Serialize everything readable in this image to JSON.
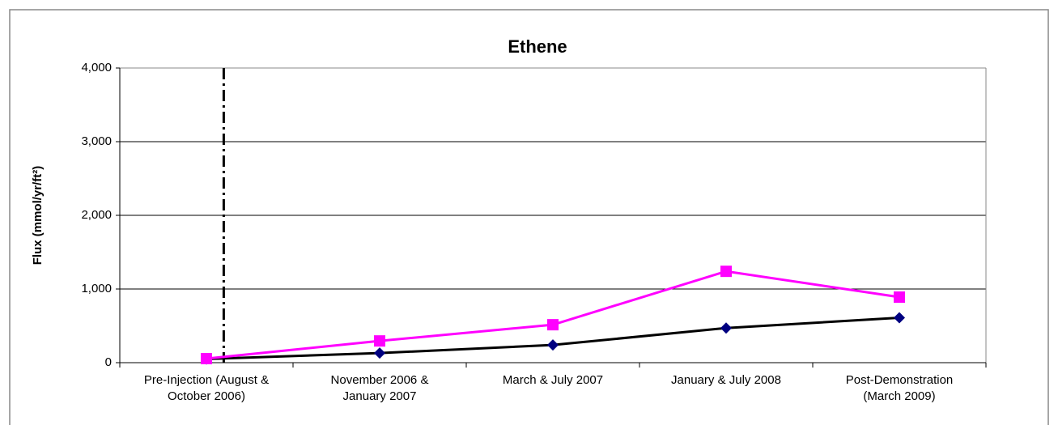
{
  "chart_data": {
    "type": "line",
    "title": "Ethene",
    "y_label": "Flux (mmol/yr/ft²)",
    "categories": [
      [
        "Pre-Injection (August &",
        "October 2006)"
      ],
      [
        "November 2006 &",
        "January 2007"
      ],
      [
        "March & July 2007"
      ],
      [
        "January & July 2008"
      ],
      [
        "Post-Demonstration",
        "(March 2009)"
      ]
    ],
    "series": [
      {
        "color": "#000080",
        "line_color": "#000000",
        "marker": "diamond",
        "values": [
          50,
          130,
          240,
          470,
          610
        ]
      },
      {
        "color": "#ff00ff",
        "line_color": "#ff00ff",
        "marker": "square",
        "values": [
          55,
          295,
          515,
          1240,
          890
        ]
      }
    ],
    "ylim": [
      0,
      4000
    ],
    "yticks": [
      0,
      {
        "value": 1000,
        "label": "1,000"
      },
      {
        "value": 2000,
        "label": "2,000"
      },
      {
        "value": 3000,
        "label": "3,000"
      },
      {
        "value": 4000,
        "label": "4,000"
      }
    ],
    "grid": true
  }
}
